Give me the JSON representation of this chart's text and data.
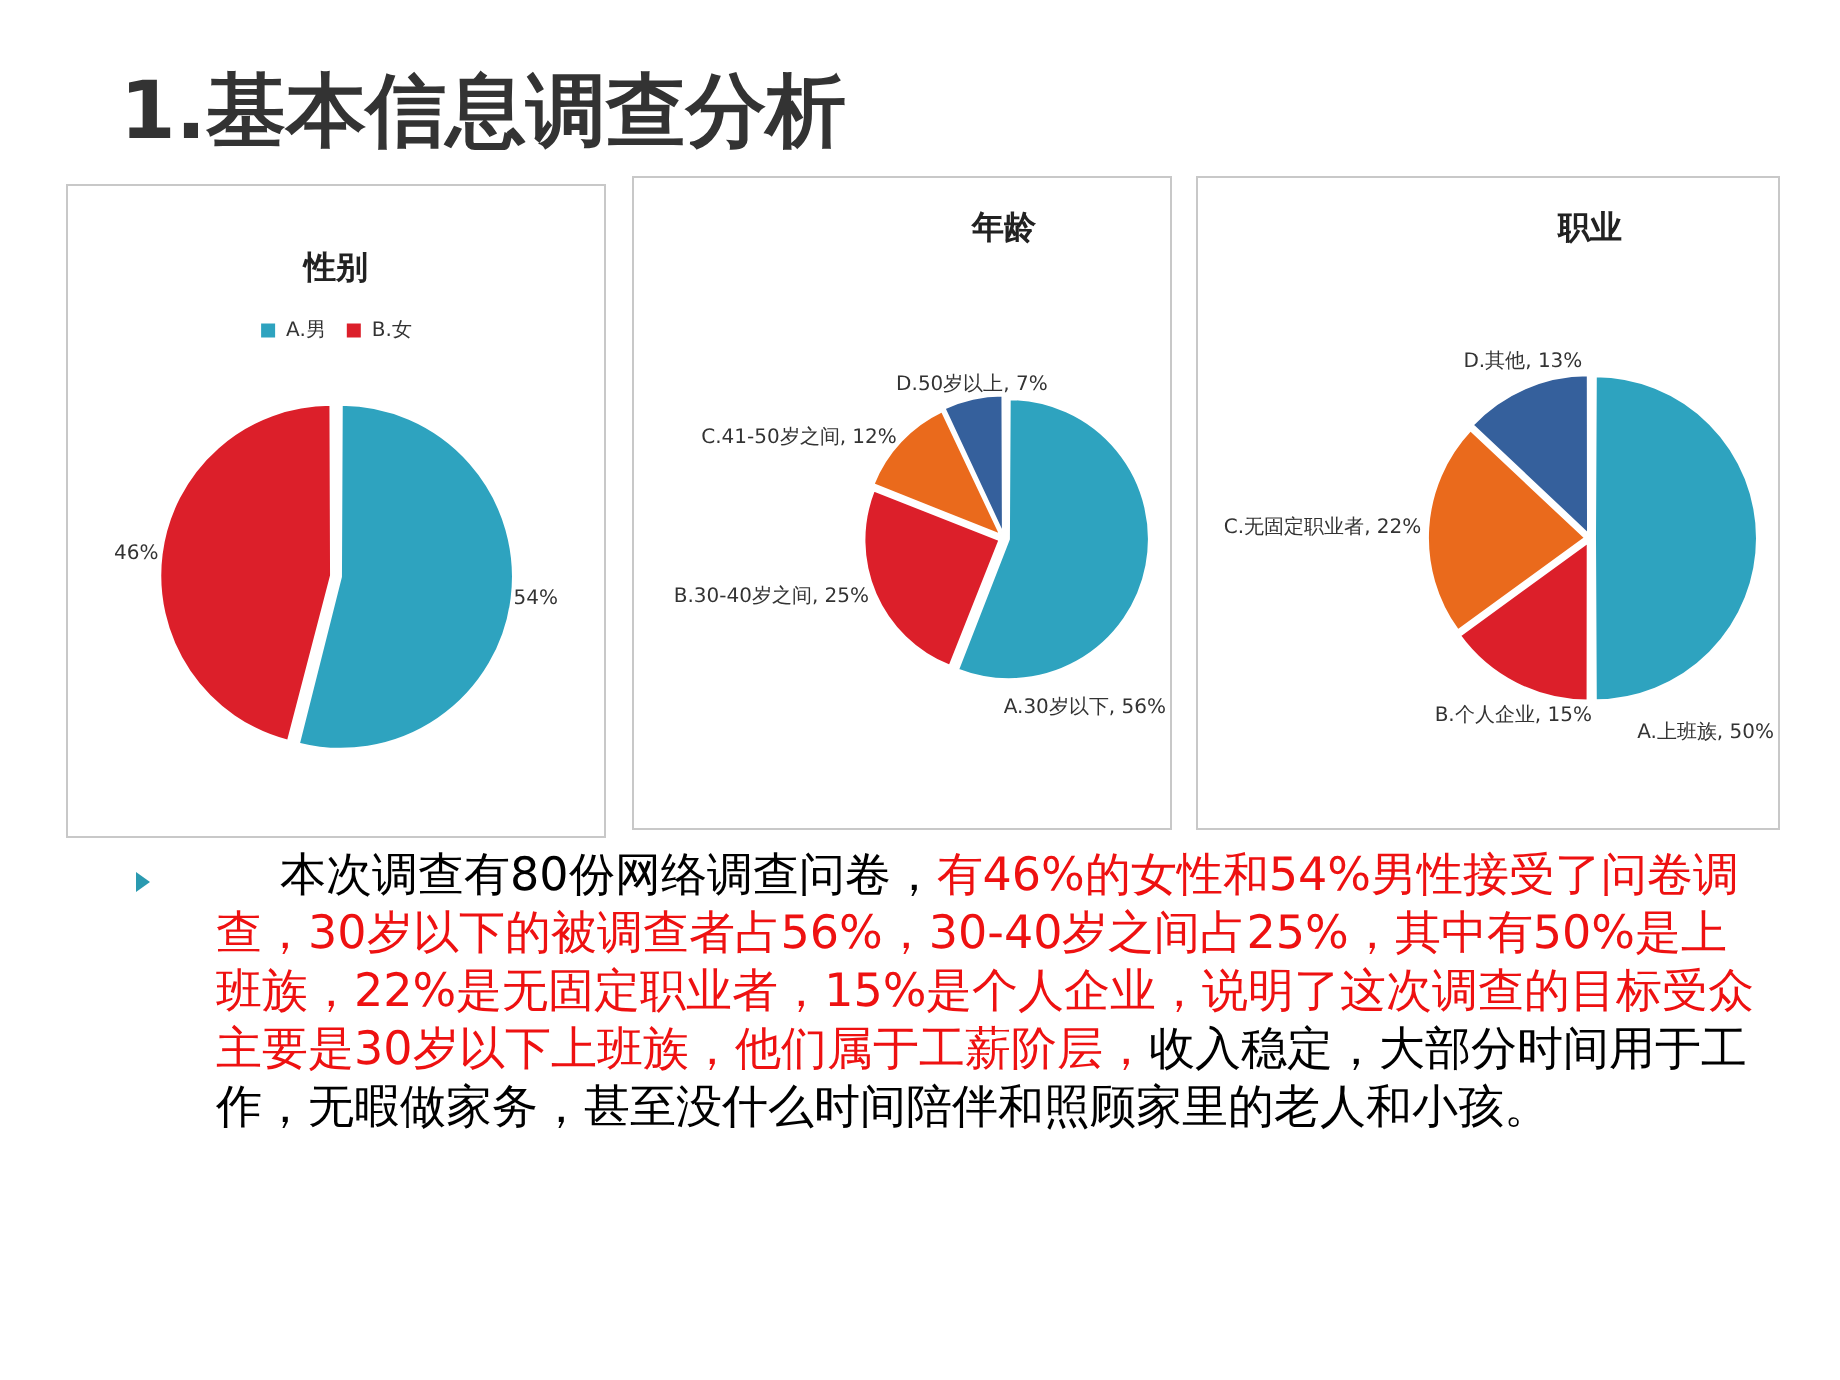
{
  "chart_data": [
    {
      "type": "pie",
      "title": "性别",
      "categories": [
        "A.男",
        "B.女"
      ],
      "values": [
        54,
        46
      ],
      "colors": [
        "#2ea3bf",
        "#dc1f2a"
      ],
      "legend": "top",
      "value_labels": [
        "54%",
        "46%"
      ]
    },
    {
      "type": "pie",
      "title": "年龄",
      "categories": [
        "A.30岁以下",
        "B.30-40岁之间",
        "C.41-50岁之间",
        "D.50岁以上"
      ],
      "values": [
        56,
        25,
        12,
        7
      ],
      "colors": [
        "#2ea3bf",
        "#dc1f2a",
        "#ea6a1c",
        "#35609c"
      ],
      "value_labels": [
        "56%",
        "25%",
        "12%",
        "7%"
      ]
    },
    {
      "type": "pie",
      "title": "职业",
      "categories": [
        "A.上班族",
        "B.个人企业",
        "C.无固定职业者",
        "D.其他"
      ],
      "values": [
        50,
        15,
        22,
        13
      ],
      "colors": [
        "#2ea3bf",
        "#dc1f2a",
        "#ea6a1c",
        "#35609c"
      ],
      "value_labels": [
        "50%",
        "15%",
        "22%",
        "13%"
      ]
    },
    {
      "type": "other",
      "title": "1.基本信息调查分析",
      "annotations": [
        "本次调查有80份网络调查问卷，",
        "有46%的女性和54%男性接受了问卷调查，30岁以下的被调查者占56%，30-40岁之间占25%，其中有50%是上班族，22%是无固定职业者，15%是个人企业，说明了这次调查的目标受众主要是30岁以下上班族，他们属于工薪阶层，",
        "收入稳定，大部分时间用于工作，无暇做家务，甚至没什么时间陪伴和照顾家里的老人和小孩。"
      ]
    }
  ]
}
